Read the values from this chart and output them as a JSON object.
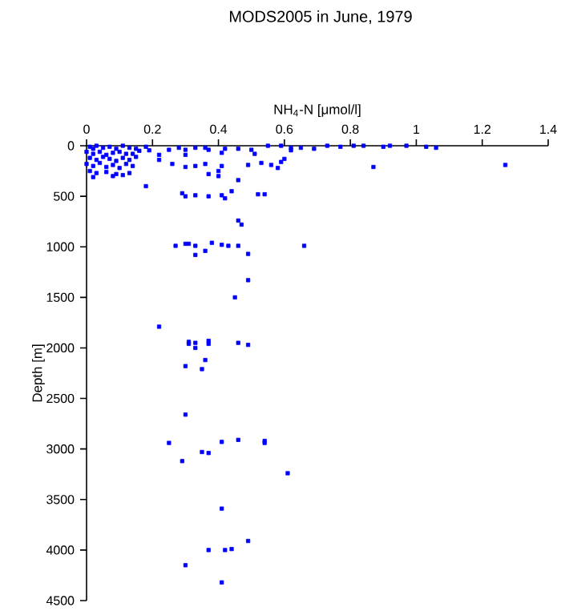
{
  "chart_data": {
    "type": "scatter",
    "title": "MODS2005 in June, 1979",
    "xlabel": "NH$_{4}$-N [μmol/l]",
    "ylabel": "Depth [m]",
    "xlim": [
      0,
      1.4
    ],
    "xticks": [
      0,
      0.2,
      0.4,
      0.6,
      0.8,
      1,
      1.2,
      1.4
    ],
    "ylim": [
      4500,
      0
    ],
    "yticks": [
      0,
      500,
      1000,
      1500,
      2000,
      2500,
      3000,
      3500,
      4000,
      4500
    ],
    "marker": "square",
    "grid": false,
    "series": [
      {
        "color": "#0000ff",
        "x": [
          0.01,
          0.02,
          0.03,
          0.05,
          0.07,
          0.09,
          0.11,
          0.13,
          0.15,
          0.0,
          0.02,
          0.04,
          0.06,
          0.08,
          0.1,
          0.12,
          0.14,
          0.16,
          0.01,
          0.03,
          0.05,
          0.07,
          0.09,
          0.11,
          0.13,
          0.15,
          0.0,
          0.02,
          0.04,
          0.06,
          0.08,
          0.1,
          0.12,
          0.14,
          0.01,
          0.03,
          0.06,
          0.09,
          0.11,
          0.13,
          0.02,
          0.08,
          0.55,
          0.59,
          0.62,
          0.65,
          0.69,
          0.73,
          0.77,
          0.81,
          0.84,
          0.9,
          0.92,
          0.97,
          1.03,
          1.06,
          0.18,
          0.19,
          0.22,
          0.22,
          0.26,
          0.25,
          0.28,
          0.3,
          0.33,
          0.36,
          0.37,
          0.41,
          0.42,
          0.46,
          0.5,
          0.51,
          0.49,
          0.53,
          0.56,
          0.58,
          0.59,
          0.6,
          0.62,
          0.3,
          0.33,
          0.36,
          0.41,
          0.3,
          0.18,
          0.46,
          0.87,
          1.27,
          0.37,
          0.4,
          0.4,
          0.29,
          0.3,
          0.33,
          0.37,
          0.41,
          0.42,
          0.44,
          0.52,
          0.54,
          0.46,
          0.47,
          0.66,
          0.27,
          0.3,
          0.31,
          0.33,
          0.33,
          0.36,
          0.38,
          0.41,
          0.43,
          0.46,
          0.49,
          0.49,
          0.45,
          0.22,
          0.31,
          0.31,
          0.33,
          0.33,
          0.37,
          0.37,
          0.46,
          0.49,
          0.3,
          0.35,
          0.36,
          0.3,
          0.25,
          0.29,
          0.35,
          0.37,
          0.41,
          0.46,
          0.54,
          0.54,
          0.61,
          0.41,
          0.37,
          0.42,
          0.44,
          0.49,
          0.3,
          0.41
        ],
        "values": [
          10,
          30,
          0,
          20,
          10,
          30,
          0,
          20,
          30,
          60,
          80,
          60,
          90,
          70,
          60,
          80,
          80,
          50,
          120,
          140,
          110,
          130,
          150,
          120,
          140,
          110,
          180,
          200,
          170,
          210,
          190,
          220,
          180,
          200,
          250,
          270,
          260,
          280,
          290,
          270,
          310,
          300,
          0,
          0,
          20,
          20,
          30,
          0,
          10,
          0,
          0,
          10,
          0,
          0,
          10,
          20,
          10,
          45,
          90,
          140,
          180,
          40,
          20,
          40,
          20,
          20,
          40,
          70,
          30,
          30,
          40,
          80,
          190,
          170,
          190,
          220,
          160,
          130,
          45,
          210,
          200,
          180,
          200,
          90,
          400,
          340,
          210,
          190,
          280,
          300,
          250,
          470,
          500,
          490,
          500,
          490,
          520,
          450,
          480,
          480,
          740,
          780,
          990,
          990,
          970,
          970,
          990,
          1080,
          1040,
          960,
          980,
          990,
          990,
          1070,
          1330,
          1500,
          1790,
          1940,
          1960,
          2000,
          1950,
          1930,
          1960,
          1950,
          1970,
          2180,
          2210,
          2120,
          2660,
          2940,
          3120,
          3030,
          3040,
          2930,
          2910,
          2920,
          2940,
          3240,
          3590,
          4000,
          4000,
          3990,
          3910,
          4150,
          4320
        ]
      }
    ]
  }
}
